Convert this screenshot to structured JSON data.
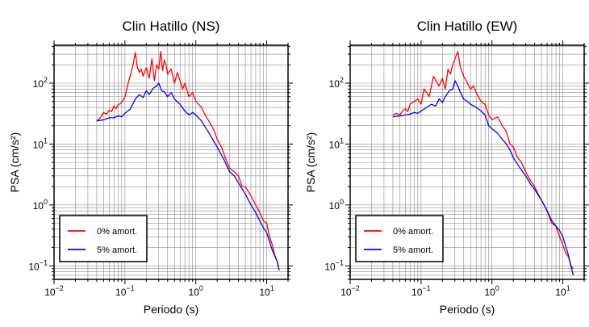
{
  "chart_data": [
    {
      "type": "line",
      "title": "Clin Hatillo (NS)",
      "xlabel": "Periodo (s)",
      "ylabel": "PSA (cm/s²)",
      "xscale": "log",
      "yscale": "log",
      "xlim": [
        0.01,
        20
      ],
      "ylim": [
        0.06,
        420
      ],
      "x_ticks": [
        {
          "value": 0.01,
          "base": "10",
          "exp": "−2"
        },
        {
          "value": 0.1,
          "base": "10",
          "exp": "−1"
        },
        {
          "value": 1,
          "base": "10",
          "exp": "0"
        },
        {
          "value": 10,
          "base": "10",
          "exp": "1"
        }
      ],
      "y_ticks": [
        {
          "value": 0.1,
          "base": "10",
          "exp": "−1"
        },
        {
          "value": 1,
          "base": "10",
          "exp": "0"
        },
        {
          "value": 10,
          "base": "10",
          "exp": "1"
        },
        {
          "value": 100,
          "base": "10",
          "exp": "2"
        }
      ],
      "grid": true,
      "legend_position": "bottom-left",
      "series": [
        {
          "name": "0% amort.",
          "color": "#ff0000",
          "x": [
            0.04,
            0.045,
            0.05,
            0.055,
            0.06,
            0.065,
            0.07,
            0.075,
            0.08,
            0.09,
            0.1,
            0.11,
            0.12,
            0.13,
            0.14,
            0.15,
            0.16,
            0.17,
            0.18,
            0.2,
            0.22,
            0.24,
            0.26,
            0.28,
            0.3,
            0.32,
            0.34,
            0.36,
            0.38,
            0.4,
            0.45,
            0.5,
            0.55,
            0.6,
            0.65,
            0.7,
            0.8,
            0.9,
            1.0,
            1.1,
            1.2,
            1.4,
            1.6,
            1.8,
            2.0,
            2.3,
            2.6,
            3.0,
            3.5,
            4.0,
            4.5,
            5.0,
            6.0,
            7.0,
            8.0,
            9.0,
            10.0,
            11.0,
            12.0,
            13.0,
            14.0,
            15.0
          ],
          "values": [
            24,
            27,
            33,
            31,
            36,
            34,
            42,
            38,
            44,
            48,
            60,
            95,
            140,
            200,
            320,
            180,
            150,
            170,
            130,
            180,
            120,
            250,
            110,
            200,
            170,
            330,
            160,
            240,
            200,
            140,
            170,
            100,
            150,
            110,
            80,
            100,
            60,
            70,
            50,
            45,
            40,
            28,
            22,
            17,
            12,
            9,
            6,
            4,
            3.5,
            3,
            2,
            2,
            1.4,
            1,
            0.75,
            0.55,
            0.5,
            0.3,
            0.22,
            0.15,
            0.12,
            0.085
          ]
        },
        {
          "name": "5% amort.",
          "color": "#0000ff",
          "x": [
            0.04,
            0.05,
            0.06,
            0.07,
            0.08,
            0.09,
            0.1,
            0.12,
            0.14,
            0.16,
            0.18,
            0.2,
            0.22,
            0.25,
            0.28,
            0.3,
            0.33,
            0.36,
            0.4,
            0.45,
            0.5,
            0.6,
            0.7,
            0.8,
            0.9,
            1.0,
            1.2,
            1.4,
            1.6,
            1.8,
            2.0,
            2.5,
            3.0,
            3.5,
            4.0,
            5.0,
            6.0,
            7.0,
            8.0,
            9.0,
            10.0,
            12.0,
            14.0,
            15.0
          ],
          "values": [
            24,
            25,
            27,
            27,
            29,
            28,
            32,
            38,
            55,
            65,
            58,
            75,
            65,
            82,
            90,
            100,
            75,
            72,
            60,
            70,
            55,
            45,
            35,
            30,
            33,
            30,
            24,
            18,
            14,
            11,
            9,
            5.5,
            3.5,
            3,
            2.3,
            1.5,
            1,
            0.75,
            0.55,
            0.42,
            0.35,
            0.18,
            0.12,
            0.085
          ]
        }
      ],
      "legend": [
        {
          "label": "0% amort.",
          "color": "#ff0000"
        },
        {
          "label": "5% amort.",
          "color": "#0000ff"
        }
      ]
    },
    {
      "type": "line",
      "title": "Clin Hatillo (EW)",
      "xlabel": "Periodo (s)",
      "ylabel": "PSA (cm/s²)",
      "xscale": "log",
      "yscale": "log",
      "xlim": [
        0.01,
        20
      ],
      "ylim": [
        0.06,
        420
      ],
      "x_ticks": [
        {
          "value": 0.01,
          "base": "10",
          "exp": "−2"
        },
        {
          "value": 0.1,
          "base": "10",
          "exp": "−1"
        },
        {
          "value": 1,
          "base": "10",
          "exp": "0"
        },
        {
          "value": 10,
          "base": "10",
          "exp": "1"
        }
      ],
      "y_ticks": [
        {
          "value": 0.1,
          "base": "10",
          "exp": "−1"
        },
        {
          "value": 1,
          "base": "10",
          "exp": "0"
        },
        {
          "value": 10,
          "base": "10",
          "exp": "1"
        },
        {
          "value": 100,
          "base": "10",
          "exp": "2"
        }
      ],
      "grid": true,
      "legend_position": "bottom-left",
      "series": [
        {
          "name": "0% amort.",
          "color": "#ff0000",
          "x": [
            0.04,
            0.045,
            0.05,
            0.055,
            0.06,
            0.065,
            0.07,
            0.08,
            0.09,
            0.1,
            0.11,
            0.12,
            0.13,
            0.14,
            0.15,
            0.17,
            0.18,
            0.2,
            0.22,
            0.24,
            0.26,
            0.28,
            0.3,
            0.33,
            0.36,
            0.4,
            0.45,
            0.5,
            0.55,
            0.6,
            0.7,
            0.8,
            0.9,
            1.0,
            1.2,
            1.4,
            1.6,
            1.8,
            2.0,
            2.3,
            2.6,
            3.0,
            3.5,
            4.0,
            4.5,
            5.0,
            6.0,
            7.0,
            8.0,
            9.0,
            10.0,
            11.0,
            12.0,
            13.0,
            14.0
          ],
          "values": [
            30,
            32,
            30,
            35,
            38,
            34,
            45,
            50,
            55,
            45,
            80,
            70,
            60,
            90,
            130,
            100,
            90,
            120,
            80,
            170,
            140,
            200,
            250,
            330,
            180,
            130,
            100,
            80,
            90,
            70,
            50,
            45,
            30,
            25,
            28,
            20,
            16,
            10,
            9,
            6,
            5,
            3.5,
            2.5,
            2,
            1.5,
            1.2,
            0.8,
            0.5,
            0.45,
            0.3,
            0.22,
            0.16,
            0.14,
            0.1,
            0.09
          ]
        },
        {
          "name": "5% amort.",
          "color": "#0000ff",
          "x": [
            0.04,
            0.05,
            0.06,
            0.07,
            0.08,
            0.09,
            0.1,
            0.12,
            0.14,
            0.16,
            0.18,
            0.2,
            0.22,
            0.25,
            0.28,
            0.3,
            0.33,
            0.36,
            0.4,
            0.45,
            0.5,
            0.6,
            0.7,
            0.8,
            0.9,
            1.0,
            1.2,
            1.4,
            1.6,
            1.8,
            2.0,
            2.5,
            3.0,
            3.5,
            4.0,
            5.0,
            6.0,
            7.0,
            8.0,
            9.0,
            10.0,
            12.0,
            14.0
          ],
          "values": [
            28,
            29,
            30,
            31,
            33,
            32,
            35,
            40,
            45,
            42,
            55,
            48,
            60,
            75,
            80,
            110,
            90,
            70,
            55,
            50,
            45,
            40,
            35,
            30,
            20,
            18,
            15,
            12,
            10,
            8,
            6,
            4,
            3,
            2.2,
            1.8,
            1.2,
            0.8,
            0.55,
            0.45,
            0.38,
            0.3,
            0.15,
            0.07
          ]
        }
      ],
      "legend": [
        {
          "label": "0% amort.",
          "color": "#ff0000"
        },
        {
          "label": "5% amort.",
          "color": "#0000ff"
        }
      ]
    }
  ]
}
